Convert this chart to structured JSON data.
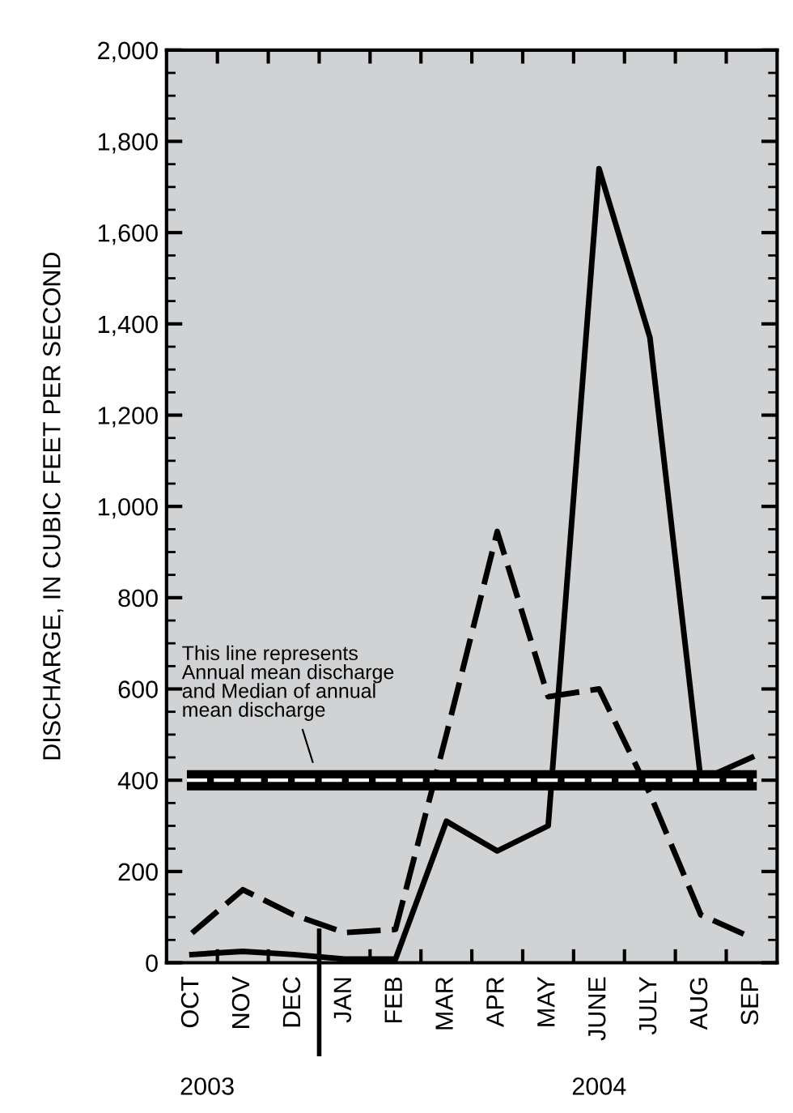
{
  "chart_data": {
    "type": "line",
    "ylabel": "DISCHARGE, IN CUBIC FEET PER SECOND",
    "categories": [
      "OCT",
      "NOV",
      "DEC",
      "JAN",
      "FEB",
      "MAR",
      "APR",
      "MAY",
      "JUNE",
      "JULY",
      "AUG",
      "SEP"
    ],
    "series": [
      {
        "color": "#000000",
        "line_style": "solid",
        "values": [
          18,
          25,
          18,
          8,
          8,
          310,
          245,
          300,
          1740,
          1370,
          400,
          450
        ]
      },
      {
        "color": "#000000",
        "line_style": "dashed",
        "values": [
          65,
          160,
          105,
          66,
          73,
          500,
          945,
          583,
          600,
          370,
          105,
          55
        ]
      }
    ],
    "ylim": [
      0,
      2000
    ],
    "yticks": [
      0,
      200,
      400,
      600,
      800,
      {
        "value": 1000,
        "label": "1,000"
      },
      {
        "value": 1200,
        "label": "1,200"
      },
      {
        "value": 1400,
        "label": "1,400"
      },
      {
        "value": 1600,
        "label": "1,600"
      },
      {
        "value": 1800,
        "label": "1,800"
      },
      {
        "value": 2000,
        "label": "2,000"
      }
    ],
    "ref_lines": [
      {
        "axis": "y",
        "value": 400,
        "color": "#000000",
        "line_style": "solid"
      },
      {
        "axis": "y",
        "value": 400,
        "color": "#ffffff",
        "line_style": "dashed"
      }
    ],
    "annotations": [
      "This line represents\nAnnual mean discharge\nand Median of annual\nmean discharge",
      "2003",
      "2004"
    ],
    "grid": false
  }
}
